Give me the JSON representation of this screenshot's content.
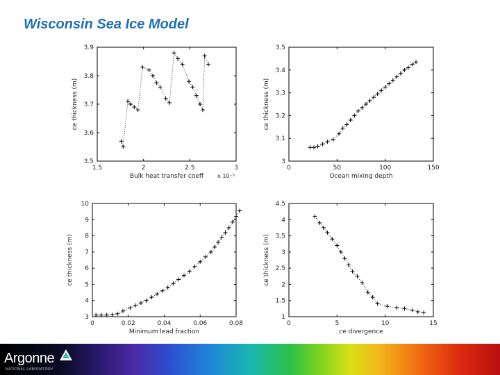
{
  "slide": {
    "title": "Wisconsin Sea Ice Model"
  },
  "footer": {
    "logo_text": "Argonne",
    "logo_subtext": "NATIONAL LABORATORY"
  },
  "chart_data": [
    {
      "type": "scatter",
      "marker": "+",
      "connector": "dotted",
      "xlabel": "Bulk heat transfer coeff",
      "ylabel": "ce thickness (m)",
      "x_multiplier_label": "x 10⁻³",
      "xlim": [
        1.5,
        3
      ],
      "ylim": [
        3.5,
        3.9
      ],
      "xticks": [
        1.5,
        2,
        2.5,
        3
      ],
      "xtick_labels": [
        "1.5",
        "2",
        "2.5",
        "3"
      ],
      "yticks": [
        3.5,
        3.6,
        3.7,
        3.8,
        3.9
      ],
      "ytick_labels": [
        "3.5",
        "3.6",
        "3.7",
        "3.8",
        "3.9"
      ],
      "points": [
        [
          1.76,
          3.57
        ],
        [
          1.78,
          3.55
        ],
        [
          1.83,
          3.71
        ],
        [
          1.86,
          3.7
        ],
        [
          1.9,
          3.69
        ],
        [
          1.94,
          3.68
        ],
        [
          1.99,
          3.83
        ],
        [
          2.06,
          3.82
        ],
        [
          2.1,
          3.8
        ],
        [
          2.14,
          3.775
        ],
        [
          2.18,
          3.76
        ],
        [
          2.24,
          3.72
        ],
        [
          2.28,
          3.705
        ],
        [
          2.33,
          3.88
        ],
        [
          2.37,
          3.86
        ],
        [
          2.42,
          3.84
        ],
        [
          2.49,
          3.78
        ],
        [
          2.53,
          3.76
        ],
        [
          2.57,
          3.73
        ],
        [
          2.61,
          3.7
        ],
        [
          2.64,
          3.68
        ],
        [
          2.66,
          3.87
        ],
        [
          2.7,
          3.84
        ]
      ]
    },
    {
      "type": "scatter",
      "marker": "+",
      "connector": "dotted",
      "xlabel": "Ocean mixing depth",
      "ylabel": "ce thickness (m)",
      "xlim": [
        0,
        150
      ],
      "ylim": [
        3,
        3.5
      ],
      "xticks": [
        0,
        50,
        100,
        150
      ],
      "xtick_labels": [
        "0",
        "50",
        "100",
        "150"
      ],
      "yticks": [
        3,
        3.1,
        3.2,
        3.3,
        3.4,
        3.5
      ],
      "ytick_labels": [
        "3",
        "3.1",
        "3.2",
        "3.3",
        "3.4",
        "3.5"
      ],
      "points": [
        [
          22,
          3.06
        ],
        [
          26,
          3.06
        ],
        [
          30,
          3.065
        ],
        [
          35,
          3.075
        ],
        [
          40,
          3.085
        ],
        [
          46,
          3.095
        ],
        [
          52,
          3.12
        ],
        [
          56,
          3.145
        ],
        [
          60,
          3.16
        ],
        [
          64,
          3.18
        ],
        [
          68,
          3.2
        ],
        [
          72,
          3.22
        ],
        [
          76,
          3.235
        ],
        [
          80,
          3.25
        ],
        [
          84,
          3.265
        ],
        [
          88,
          3.28
        ],
        [
          92,
          3.295
        ],
        [
          96,
          3.31
        ],
        [
          100,
          3.325
        ],
        [
          104,
          3.34
        ],
        [
          108,
          3.355
        ],
        [
          112,
          3.37
        ],
        [
          116,
          3.385
        ],
        [
          120,
          3.4
        ],
        [
          124,
          3.41
        ],
        [
          128,
          3.425
        ],
        [
          132,
          3.435
        ]
      ]
    },
    {
      "type": "scatter",
      "marker": "+",
      "connector": "dotted",
      "xlabel": "Minimum lead fraction",
      "ylabel": "ce thickness (m)",
      "xlim": [
        0,
        0.08
      ],
      "ylim": [
        3,
        10
      ],
      "xticks": [
        0,
        0.02,
        0.04,
        0.06,
        0.08
      ],
      "xtick_labels": [
        "0",
        "0.02",
        "0.04",
        "0.06",
        "0.08"
      ],
      "yticks": [
        3,
        4,
        5,
        6,
        7,
        8,
        9,
        10
      ],
      "ytick_labels": [
        "3",
        "4",
        "5",
        "6",
        "7",
        "8",
        "9",
        "10"
      ],
      "points": [
        [
          0.002,
          3.1
        ],
        [
          0.005,
          3.1
        ],
        [
          0.008,
          3.1
        ],
        [
          0.011,
          3.12
        ],
        [
          0.014,
          3.18
        ],
        [
          0.017,
          3.35
        ],
        [
          0.021,
          3.55
        ],
        [
          0.024,
          3.7
        ],
        [
          0.027,
          3.85
        ],
        [
          0.03,
          4.0
        ],
        [
          0.033,
          4.2
        ],
        [
          0.036,
          4.4
        ],
        [
          0.039,
          4.6
        ],
        [
          0.042,
          4.8
        ],
        [
          0.045,
          5.05
        ],
        [
          0.048,
          5.3
        ],
        [
          0.051,
          5.55
        ],
        [
          0.054,
          5.8
        ],
        [
          0.057,
          6.1
        ],
        [
          0.06,
          6.4
        ],
        [
          0.063,
          6.7
        ],
        [
          0.066,
          7.0
        ],
        [
          0.068,
          7.3
        ],
        [
          0.07,
          7.6
        ],
        [
          0.072,
          7.9
        ],
        [
          0.074,
          8.2
        ],
        [
          0.076,
          8.5
        ],
        [
          0.078,
          8.85
        ],
        [
          0.08,
          9.2
        ],
        [
          0.082,
          9.55
        ]
      ]
    },
    {
      "type": "scatter",
      "marker": "+",
      "connector": "dotted",
      "xlabel": "ce divergence",
      "ylabel": "ce thickness (m)",
      "xlim": [
        0,
        15
      ],
      "ylim": [
        1,
        4.5
      ],
      "xticks": [
        0,
        5,
        10,
        15
      ],
      "xtick_labels": [
        "0",
        "5",
        "10",
        "15"
      ],
      "yticks": [
        1,
        1.5,
        2,
        2.5,
        3,
        3.5,
        4,
        4.5
      ],
      "ytick_labels": [
        "1",
        "1.5",
        "2",
        "2.5",
        "3",
        "3.5",
        "4",
        "4.5"
      ],
      "points": [
        [
          2.7,
          4.1
        ],
        [
          3.2,
          3.9
        ],
        [
          3.6,
          3.75
        ],
        [
          4.0,
          3.6
        ],
        [
          4.5,
          3.4
        ],
        [
          5.0,
          3.2
        ],
        [
          5.4,
          3.0
        ],
        [
          5.8,
          2.8
        ],
        [
          6.2,
          2.6
        ],
        [
          6.6,
          2.4
        ],
        [
          7.1,
          2.25
        ],
        [
          7.6,
          2.05
        ],
        [
          8.2,
          1.75
        ],
        [
          8.7,
          1.6
        ],
        [
          9.2,
          1.4
        ],
        [
          10.2,
          1.32
        ],
        [
          11.2,
          1.28
        ],
        [
          12.0,
          1.25
        ],
        [
          12.8,
          1.2
        ],
        [
          13.4,
          1.15
        ],
        [
          14.0,
          1.13
        ]
      ]
    }
  ]
}
